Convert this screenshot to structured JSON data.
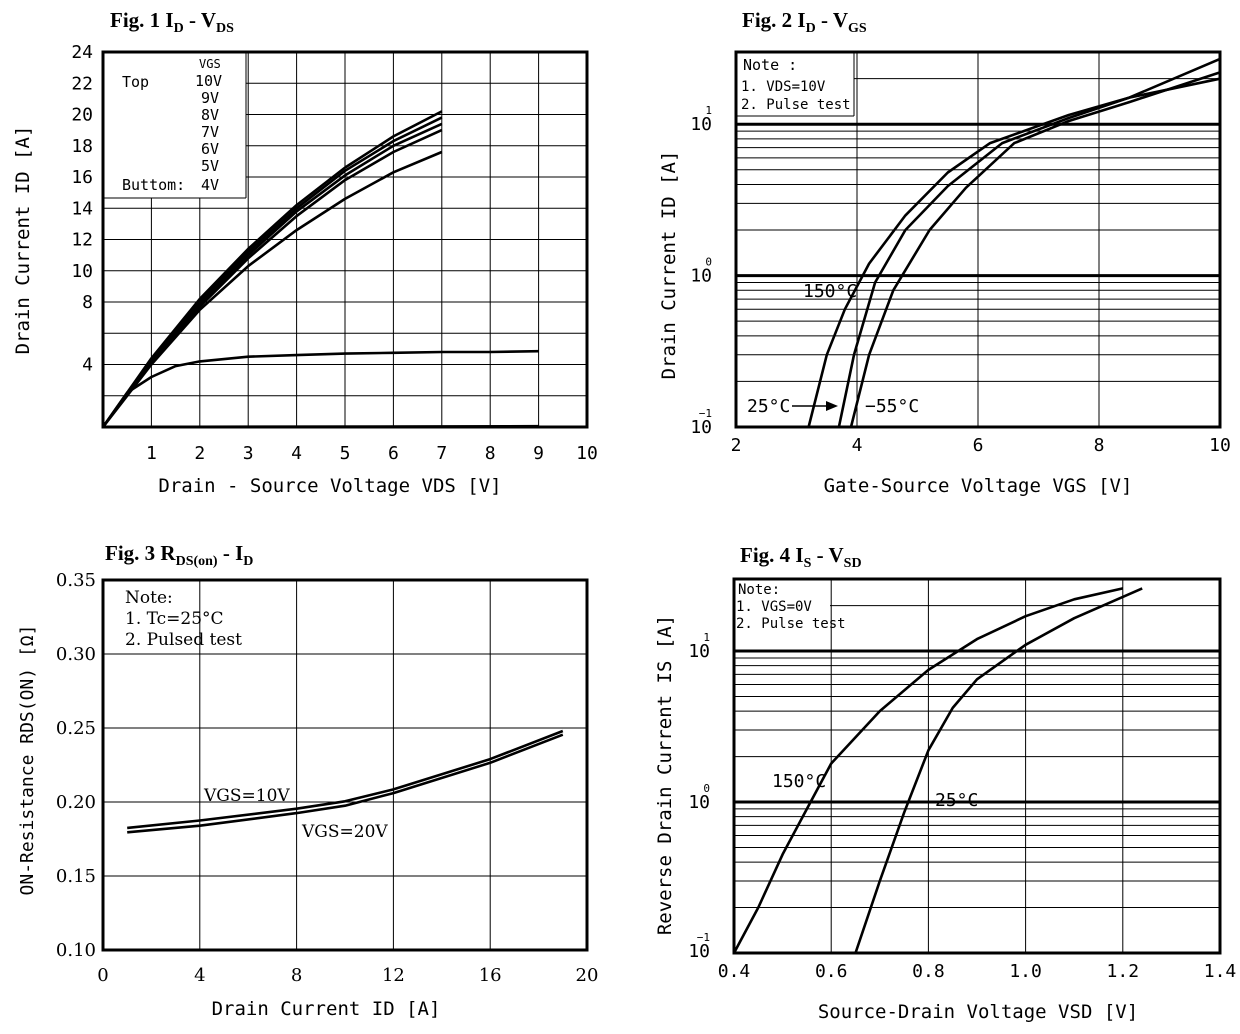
{
  "charts": [
    {
      "title_main": "Fig. 1 I",
      "title_sub1": "D",
      "title_mid": "  -  V",
      "title_sub2": "DS",
      "chart_data": {
        "type": "line",
        "title": "Fig. 1 ID - VDS",
        "xlabel": "Drain - Source Voltage  VDS [V]",
        "ylabel": "Drain Current  ID [A]",
        "xlim": [
          0,
          10
        ],
        "ylim": [
          0,
          24
        ],
        "xticks": [
          "1",
          "2",
          "3",
          "4",
          "5",
          "6",
          "7",
          "8",
          "9",
          "10"
        ],
        "yticks": [
          "4",
          "8",
          "10",
          "12",
          "14",
          "16",
          "18",
          "20",
          "22",
          "24"
        ],
        "legend": {
          "header": "VGS",
          "top_label": "Top",
          "bottom_label": "Buttom:",
          "entries": [
            "10V",
            "9V",
            "8V",
            "7V",
            "6V",
            "5V",
            "4V"
          ]
        },
        "series": [
          {
            "name": "10V",
            "x": [
              0,
              1,
              2,
              3,
              4,
              5,
              6,
              7
            ],
            "y": [
              0,
              4.4,
              8.2,
              11.4,
              14.2,
              16.6,
              18.6,
              20.2
            ]
          },
          {
            "name": "9V",
            "x": [
              0,
              1,
              2,
              3,
              4,
              5,
              6,
              7
            ],
            "y": [
              0,
              4.3,
              8.0,
              11.2,
              14.0,
              16.4,
              18.3,
              19.8
            ]
          },
          {
            "name": "8V",
            "x": [
              0,
              1,
              2,
              3,
              4,
              5,
              6,
              7
            ],
            "y": [
              0,
              4.2,
              7.9,
              11.0,
              13.8,
              16.1,
              18.0,
              19.4
            ]
          },
          {
            "name": "7V",
            "x": [
              0,
              1,
              2,
              3,
              4,
              5,
              6,
              7
            ],
            "y": [
              0,
              4.1,
              7.7,
              10.8,
              13.5,
              15.8,
              17.6,
              19.0
            ]
          },
          {
            "name": "6V",
            "x": [
              0,
              1,
              2,
              3,
              4,
              5,
              6,
              7
            ],
            "y": [
              0,
              4.0,
              7.5,
              10.3,
              12.6,
              14.6,
              16.3,
              17.6
            ]
          },
          {
            "name": "5V",
            "x": [
              0,
              0.5,
              1,
              1.5,
              2,
              3,
              4,
              5,
              6,
              7,
              8,
              9
            ],
            "y": [
              0,
              2.2,
              3.2,
              3.9,
              4.2,
              4.5,
              4.6,
              4.7,
              4.75,
              4.8,
              4.8,
              4.85
            ]
          },
          {
            "name": "4V",
            "x": [
              0,
              9
            ],
            "y": [
              0,
              0.05
            ]
          }
        ]
      }
    },
    {
      "title_main": "Fig. 2 I",
      "title_sub1": "D",
      "title_mid": "  -  V",
      "title_sub2": "GS",
      "chart_data": {
        "type": "line",
        "title": "Fig. 2 ID - VGS",
        "xlabel": "Gate-Source Voltage VGS [V]",
        "ylabel": "Drain Current ID [A]",
        "xscale": "linear",
        "yscale": "log",
        "xlim": [
          2,
          10
        ],
        "ylim": [
          0.1,
          30
        ],
        "xticks": [
          "2",
          "4",
          "6",
          "8",
          "10"
        ],
        "yticks": [
          {
            "base": "10",
            "exp": "−1"
          },
          {
            "base": "10",
            "exp": "0"
          },
          {
            "base": "10",
            "exp": "1"
          }
        ],
        "notes": [
          "Note :",
          "1. VDS=10V",
          "2. Pulse  test"
        ],
        "series": [
          {
            "name": "150°C",
            "x": [
              3.2,
              3.5,
              3.8,
              4.2,
              4.8,
              5.5,
              6.2,
              7.5,
              8.5,
              10
            ],
            "y": [
              0.1,
              0.3,
              0.6,
              1.2,
              2.5,
              4.8,
              7.5,
              11.5,
              15,
              20
            ]
          },
          {
            "name": "25°C",
            "x": [
              3.7,
              3.95,
              4.3,
              4.8,
              5.5,
              6.4,
              7.5,
              8.5,
              10
            ],
            "y": [
              0.1,
              0.3,
              0.9,
              2,
              3.9,
              7.5,
              11,
              15,
              27
            ]
          },
          {
            "name": "−55°C",
            "x": [
              3.9,
              4.2,
              4.6,
              5.2,
              5.8,
              6.6,
              7.5,
              8.5,
              10
            ],
            "y": [
              0.1,
              0.3,
              0.8,
              2,
              3.8,
              7.5,
              10.5,
              14,
              22
            ]
          }
        ],
        "annotations": [
          "150°C",
          "25°C",
          "−55°C"
        ]
      }
    },
    {
      "title_main": "Fig. 3 R",
      "title_sub1": "DS(on)",
      "title_mid": "  -  I",
      "title_sub2": "D",
      "chart_data": {
        "type": "line",
        "title": "Fig. 3 RDS(on) - ID",
        "xlabel": "Drain Current ID [A]",
        "ylabel": "ON-Resistance RDS(ON) [Ω]",
        "xlim": [
          0,
          20
        ],
        "ylim": [
          0.1,
          0.35
        ],
        "xticks": [
          "0",
          "4",
          "8",
          "12",
          "16",
          "20"
        ],
        "yticks": [
          "0.10",
          "0.15",
          "0.20",
          "0.25",
          "0.30",
          "0.35"
        ],
        "notes": [
          "Note:",
          "1. Tc=25°C",
          "2. Pulsed  test"
        ],
        "series": [
          {
            "name": "VGS=10V",
            "x": [
              1,
              4,
              8,
              10,
              12,
              16,
              19
            ],
            "y": [
              0.1825,
              0.1875,
              0.1955,
              0.2005,
              0.2085,
              0.229,
              0.248
            ]
          },
          {
            "name": "VGS=20V",
            "x": [
              1,
              4,
              8,
              10,
              12,
              16,
              19
            ],
            "y": [
              0.1795,
              0.184,
              0.1925,
              0.1975,
              0.206,
              0.2265,
              0.2455
            ]
          }
        ],
        "annotations": [
          "VGS=10V",
          "VGS=20V"
        ]
      }
    },
    {
      "title_main": "Fig. 4 I",
      "title_sub1": "S",
      "title_mid": " -  V",
      "title_sub2": "SD",
      "chart_data": {
        "type": "line",
        "title": "Fig. 4 IS - VSD",
        "xlabel": "Source-Drain Voltage VSD [V]",
        "ylabel": "Reverse Drain Current IS [A]",
        "xscale": "linear",
        "yscale": "log",
        "xlim": [
          0.4,
          1.4
        ],
        "ylim": [
          0.1,
          30
        ],
        "xticks": [
          "0.4",
          "0.6",
          "0.8",
          "1.0",
          "1.2",
          "1.4"
        ],
        "yticks": [
          {
            "base": "10",
            "exp": "−1"
          },
          {
            "base": "10",
            "exp": "0"
          },
          {
            "base": "10",
            "exp": "1"
          }
        ],
        "notes": [
          "Note:",
          "1. VGS=0V",
          "2. Pulse  test"
        ],
        "series": [
          {
            "name": "150°C",
            "x": [
              0.4,
              0.45,
              0.5,
              0.55,
              0.6,
              0.7,
              0.8,
              0.9,
              1.0,
              1.1,
              1.2
            ],
            "y": [
              0.1,
              0.2,
              0.45,
              0.9,
              1.8,
              4,
              7.5,
              12,
              17,
              22,
              26
            ]
          },
          {
            "name": "25°C",
            "x": [
              0.65,
              0.7,
              0.75,
              0.8,
              0.85,
              0.9,
              1.0,
              1.1,
              1.24
            ],
            "y": [
              0.1,
              0.3,
              0.85,
              2.2,
              4.2,
              6.5,
              11,
              16.5,
              26
            ]
          }
        ],
        "annotations": [
          "150°C",
          "25°C"
        ]
      }
    }
  ]
}
